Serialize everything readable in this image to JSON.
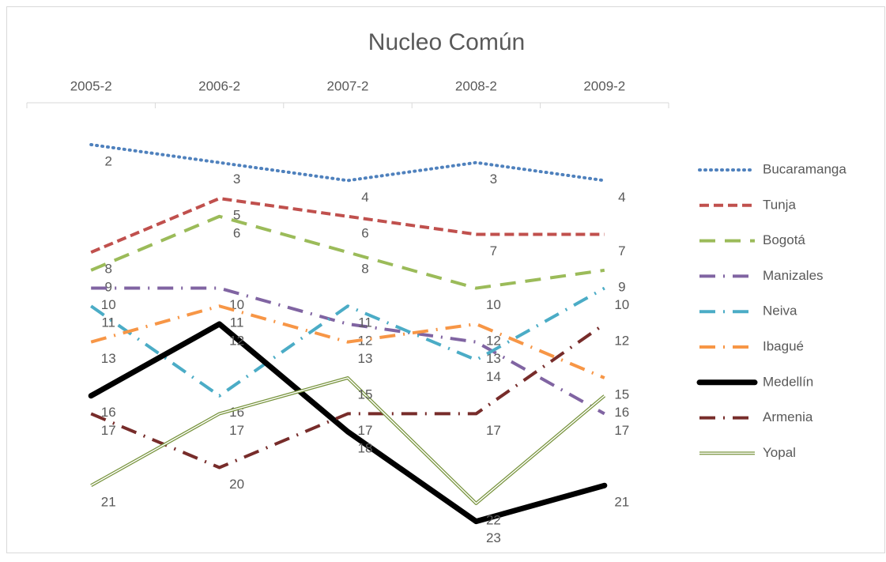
{
  "chart_data": {
    "type": "line",
    "title": "Nucleo Común",
    "categories": [
      "2005-2",
      "2006-2",
      "2007-2",
      "2008-2",
      "2009-2"
    ],
    "ylim": [
      0,
      25
    ],
    "y_reversed": true,
    "x_axis_position": "top",
    "legend": "right",
    "series": [
      {
        "name": "Bucaramanga",
        "color": "#4f81bd",
        "dash": "dotted",
        "values": [
          2,
          3,
          4,
          3,
          4
        ]
      },
      {
        "name": "Tunja",
        "color": "#c0504d",
        "dash": "dashed",
        "values": [
          8,
          5,
          6,
          7,
          7
        ]
      },
      {
        "name": "Bogotá",
        "color": "#9bbb59",
        "dash": "long-dash",
        "values": [
          9,
          6,
          8,
          10,
          9
        ]
      },
      {
        "name": "Manizales",
        "color": "#8064a2",
        "dash": "long-dash-dot",
        "values": [
          10,
          10,
          12,
          13,
          17
        ]
      },
      {
        "name": "Neiva",
        "color": "#4bacc6",
        "dash": "long-dash-dot",
        "values": [
          11,
          16,
          11,
          14,
          10
        ]
      },
      {
        "name": "Ibagué",
        "color": "#f79646",
        "dash": "long-dash-dot",
        "values": [
          13,
          11,
          13,
          12,
          15
        ]
      },
      {
        "name": "Medellín",
        "color": "#000000",
        "dash": "solid-thick",
        "values": [
          16,
          12,
          18,
          23,
          21
        ]
      },
      {
        "name": "Armenia",
        "color": "#772c2a",
        "dash": "long-dash-dot",
        "values": [
          17,
          20,
          17,
          17,
          12
        ]
      },
      {
        "name": "Yopal",
        "color": "#77933c",
        "dash": "double",
        "values": [
          21,
          17,
          15,
          22,
          16
        ]
      }
    ]
  }
}
